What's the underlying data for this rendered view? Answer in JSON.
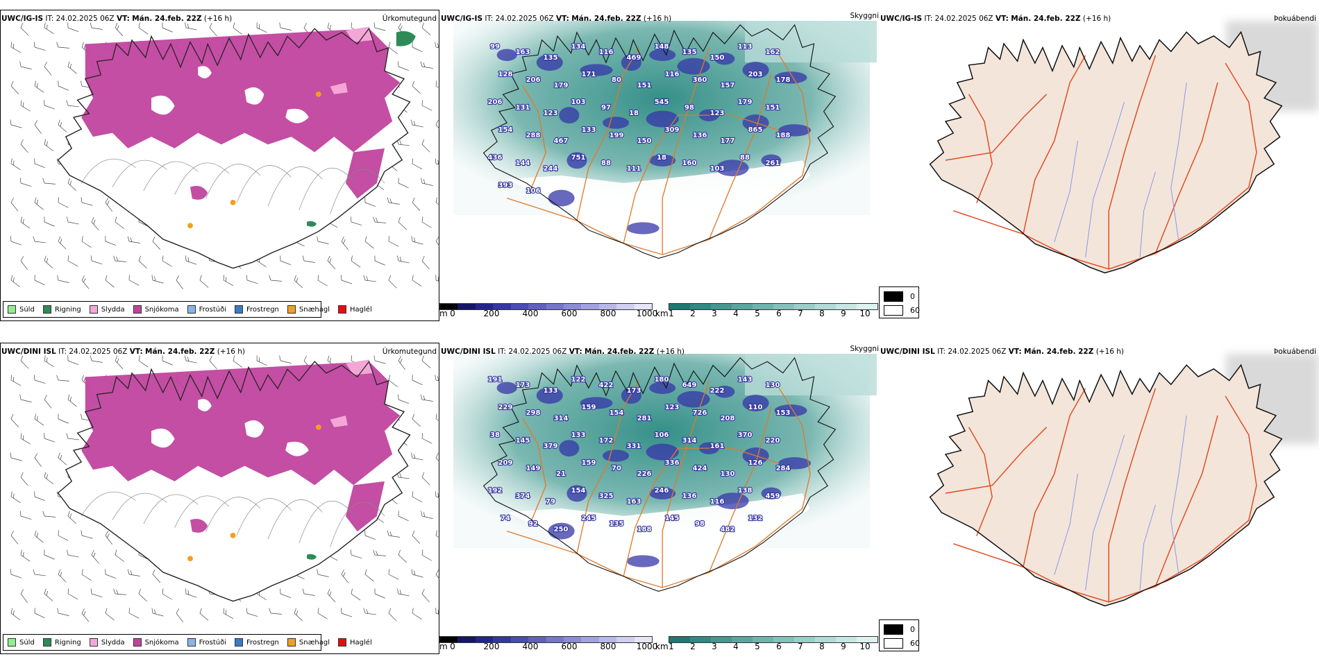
{
  "rows": [
    {
      "model": "UWC/IG-IS",
      "it_label": "IT:",
      "it_value": "24.02.2025 06Z",
      "vt_label": "VT:",
      "vt_value": "Mán. 24.feb. 22Z",
      "lead": "(+16 h)",
      "precip_title": "Úrkomutegund",
      "cloud_title": "Skyggni",
      "fog_title": "Þokuábendi",
      "labels": [
        {
          "t": "99"
        },
        {
          "t": "163"
        },
        {
          "t": "135"
        },
        {
          "t": "134"
        },
        {
          "t": "116"
        },
        {
          "t": "469"
        },
        {
          "t": "148"
        },
        {
          "t": "135"
        },
        {
          "t": "150"
        },
        {
          "t": "113"
        },
        {
          "t": "162"
        },
        {
          "t": "128"
        },
        {
          "t": "206"
        },
        {
          "t": "179"
        },
        {
          "t": "171"
        },
        {
          "t": "80"
        },
        {
          "t": "151"
        },
        {
          "t": "116"
        },
        {
          "t": "360"
        },
        {
          "t": "157"
        },
        {
          "t": "203"
        },
        {
          "t": "178"
        },
        {
          "t": "206"
        },
        {
          "t": "131"
        },
        {
          "t": "123"
        },
        {
          "t": "103"
        },
        {
          "t": "97"
        },
        {
          "t": "18"
        },
        {
          "t": "545"
        },
        {
          "t": "98"
        },
        {
          "t": "123"
        },
        {
          "t": "179"
        },
        {
          "t": "151"
        },
        {
          "t": "154"
        },
        {
          "t": "288"
        },
        {
          "t": "467"
        },
        {
          "t": "133"
        },
        {
          "t": "199"
        },
        {
          "t": "150"
        },
        {
          "t": "309"
        },
        {
          "t": "136"
        },
        {
          "t": "177"
        },
        {
          "t": "865"
        },
        {
          "t": "188"
        },
        {
          "t": "436"
        },
        {
          "t": "144"
        },
        {
          "t": "244"
        },
        {
          "t": "751"
        },
        {
          "t": "88"
        },
        {
          "t": "111"
        },
        {
          "t": "18"
        },
        {
          "t": "160"
        },
        {
          "t": "103"
        },
        {
          "t": "88"
        },
        {
          "t": "261"
        },
        {
          "t": "393"
        },
        {
          "t": "106"
        }
      ]
    },
    {
      "model": "UWC/DINI ISL",
      "it_label": "IT:",
      "it_value": "24.02.2025 06Z",
      "vt_label": "VT:",
      "vt_value": "Mán. 24.feb. 22Z",
      "lead": "(+16 h)",
      "precip_title": "Úrkomutegund",
      "cloud_title": "Skyggni",
      "fog_title": "Þokuábendi",
      "labels": [
        {
          "t": "191"
        },
        {
          "t": "173"
        },
        {
          "t": "133"
        },
        {
          "t": "122"
        },
        {
          "t": "422"
        },
        {
          "t": "173"
        },
        {
          "t": "180"
        },
        {
          "t": "649"
        },
        {
          "t": "222"
        },
        {
          "t": "143"
        },
        {
          "t": "130"
        },
        {
          "t": "229"
        },
        {
          "t": "298"
        },
        {
          "t": "314"
        },
        {
          "t": "159"
        },
        {
          "t": "154"
        },
        {
          "t": "281"
        },
        {
          "t": "123"
        },
        {
          "t": "726"
        },
        {
          "t": "208"
        },
        {
          "t": "110"
        },
        {
          "t": "153"
        },
        {
          "t": "38"
        },
        {
          "t": "145"
        },
        {
          "t": "379"
        },
        {
          "t": "133"
        },
        {
          "t": "172"
        },
        {
          "t": "331"
        },
        {
          "t": "106"
        },
        {
          "t": "314"
        },
        {
          "t": "161"
        },
        {
          "t": "370"
        },
        {
          "t": "220"
        },
        {
          "t": "209"
        },
        {
          "t": "149"
        },
        {
          "t": "21"
        },
        {
          "t": "159"
        },
        {
          "t": "70"
        },
        {
          "t": "226"
        },
        {
          "t": "336"
        },
        {
          "t": "424"
        },
        {
          "t": "130"
        },
        {
          "t": "126"
        },
        {
          "t": "284"
        },
        {
          "t": "192"
        },
        {
          "t": "374"
        },
        {
          "t": "79"
        },
        {
          "t": "154"
        },
        {
          "t": "325"
        },
        {
          "t": "163"
        },
        {
          "t": "246"
        },
        {
          "t": "136"
        },
        {
          "t": "116"
        },
        {
          "t": "138"
        },
        {
          "t": "459"
        },
        {
          "t": "74"
        },
        {
          "t": "92"
        },
        {
          "t": "250"
        },
        {
          "t": "245"
        },
        {
          "t": "135"
        },
        {
          "t": "188"
        },
        {
          "t": "145"
        },
        {
          "t": "98"
        },
        {
          "t": "482"
        },
        {
          "t": "132"
        }
      ]
    }
  ],
  "precip_legend": [
    {
      "label": "Súld",
      "color": "#90ee90"
    },
    {
      "label": "Rigning",
      "color": "#2e8b57"
    },
    {
      "label": "Slydda",
      "color": "#f4a6d7"
    },
    {
      "label": "Snjókoma",
      "color": "#c0449e"
    },
    {
      "label": "Frostúði",
      "color": "#87b5ea"
    },
    {
      "label": "Frostregn",
      "color": "#3a7bc8"
    },
    {
      "label": "Snæhagl",
      "color": "#f0a020"
    },
    {
      "label": "Haglél",
      "color": "#e01010"
    }
  ],
  "height_bar": {
    "unit": "m",
    "ticks": [
      "0",
      "200",
      "400",
      "600",
      "800",
      "1000"
    ],
    "colors": [
      "#000000",
      "#15156a",
      "#24248f",
      "#3535a8",
      "#4a4ab8",
      "#6060c2",
      "#7676cc",
      "#8c8cd6",
      "#a2a2df",
      "#b8b8e8",
      "#cfcff0",
      "#e6e6f7"
    ]
  },
  "vis_bar": {
    "unit": "km",
    "ticks": [
      "1",
      "2",
      "3",
      "4",
      "5",
      "6",
      "7",
      "8",
      "9",
      "10"
    ],
    "colors": [
      "#1d7a72",
      "#2f8a82",
      "#449890",
      "#5aa69e",
      "#70b3ac",
      "#86c0ba",
      "#9ccdc8",
      "#b2dad6",
      "#c8e6e3",
      "#def2f0"
    ]
  },
  "fog_legend": [
    {
      "label": "0",
      "color": "#000000"
    },
    {
      "label": "60",
      "color": "#ffffff"
    }
  ],
  "colors": {
    "snow": "#c0449e",
    "rain": "#2e8b57",
    "sleet": "#f4a6d7",
    "snow_pellet": "#f0a020",
    "vis_green": "#2f8f87",
    "label_blue": "#3030a0",
    "roads": "#e07a2a",
    "land_tan": "#f3e5da",
    "fog_roads": "#e04a20",
    "fog_rivers": "#7f8fee"
  }
}
